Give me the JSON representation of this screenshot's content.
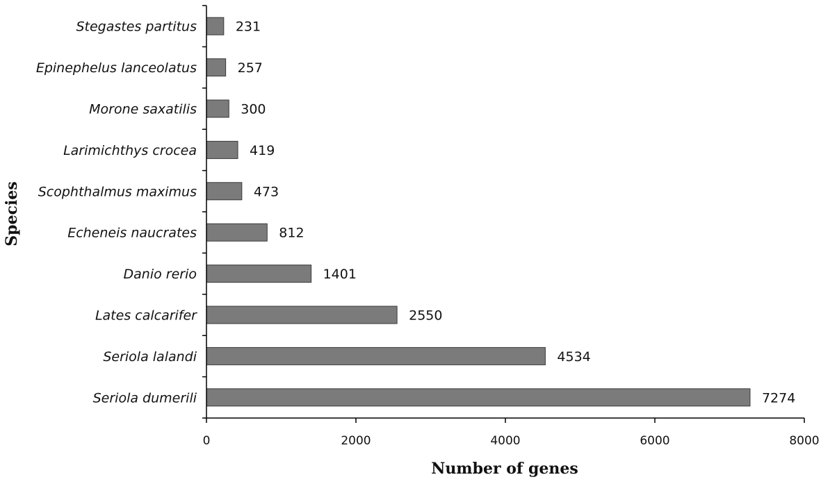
{
  "chart_data": {
    "type": "bar",
    "orientation": "horizontal",
    "categories": [
      "Stegastes partitus",
      "Epinephelus lanceolatus",
      "Morone saxatilis",
      "Larimichthys crocea",
      "Scophthalmus maximus",
      "Echeneis naucrates",
      "Danio rerio",
      "Lates calcarifer",
      "Seriola lalandi",
      "Seriola dumerili"
    ],
    "values": [
      231,
      257,
      300,
      419,
      473,
      812,
      1401,
      2550,
      4534,
      7274
    ],
    "data_labels": [
      "231",
      "257",
      "300",
      "419",
      "473",
      "812",
      "1401",
      "2550",
      "4534",
      "7274"
    ],
    "xlabel": "Number of genes",
    "ylabel": "Species",
    "xlim": [
      0,
      8000
    ],
    "xticks": [
      0,
      2000,
      4000,
      6000,
      8000
    ],
    "xtick_labels": [
      "0",
      "2000",
      "4000",
      "6000",
      "8000"
    ],
    "bar_color": "#7b7b7b",
    "grid": false,
    "legend": false
  }
}
